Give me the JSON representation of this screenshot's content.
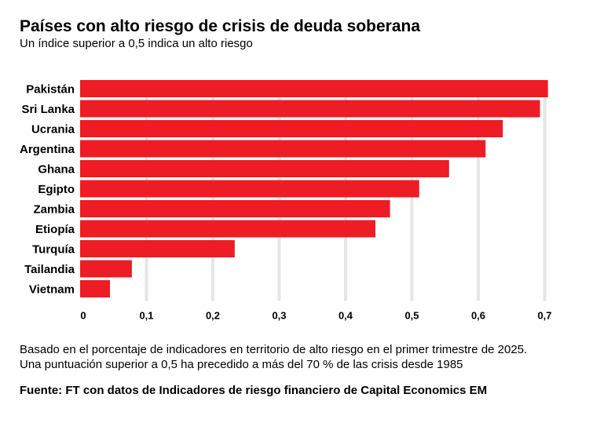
{
  "header": {
    "title": "Países con alto riesgo de crisis de deuda soberana",
    "subtitle": "Un índice superior a 0,5 indica un alto riesgo"
  },
  "footer": {
    "note_line1": "Basado en el porcentaje de indicadores en territorio de alto riesgo en el primer trimestre de 2025.",
    "note_line2": "Una puntuación superior a 0,5 ha precedido a más del 70 % de las crisis desde 1985",
    "source": "Fuente: FT con datos de Indicadores de riesgo financiero de Capital Economics EM"
  },
  "colors": {
    "bar": "#ee1c25",
    "grid": "#e6e6e6"
  },
  "chart_data": {
    "type": "bar",
    "orientation": "horizontal",
    "title": "Países con alto riesgo de crisis de deuda soberana",
    "subtitle": "Un índice superior a 0,5 indica un alto riesgo",
    "categories": [
      "Pakistán",
      "Sri Lanka",
      "Ucrania",
      "Argentina",
      "Ghana",
      "Egipto",
      "Zambia",
      "Etiopía",
      "Turquía",
      "Tailandia",
      "Vietnam"
    ],
    "values": [
      0.705,
      0.693,
      0.637,
      0.611,
      0.556,
      0.511,
      0.467,
      0.445,
      0.233,
      0.078,
      0.045
    ],
    "xlim": [
      0,
      0.7
    ],
    "xticks": [
      0,
      0.1,
      0.2,
      0.3,
      0.4,
      0.5,
      0.6,
      0.7
    ],
    "xtick_labels": [
      "0",
      "0,1",
      "0,2",
      "0,3",
      "0,4",
      "0,5",
      "0,6",
      "0,7"
    ],
    "grid": true,
    "legend": "none"
  }
}
